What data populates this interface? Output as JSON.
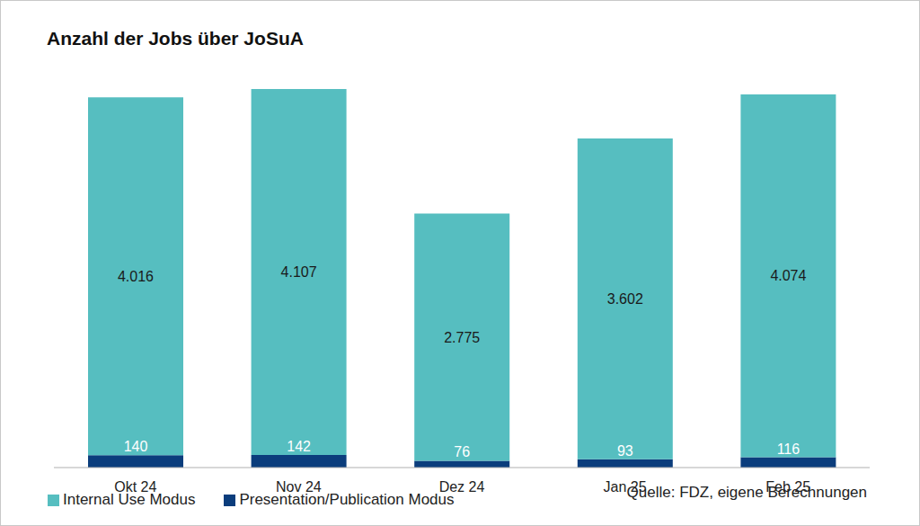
{
  "chart_data": {
    "type": "bar",
    "title": "Anzahl der Jobs über JoSuA",
    "annotations": [
      "Quelle: FDZ, eigene Berechnungen"
    ],
    "categories": [
      "Okt 24",
      "Nov 24",
      "Dez 24",
      "Jan 25",
      "Feb 25"
    ],
    "series": [
      {
        "name": "Presentation/Publication Modus",
        "color": "#0b3d7c",
        "values": [
          140,
          142,
          76,
          93,
          116
        ]
      },
      {
        "name": "Internal Use Modus",
        "color": "#56bec0",
        "values": [
          4016,
          4107,
          2775,
          3602,
          4074
        ],
        "value_labels": [
          "4.016",
          "4.107",
          "2.775",
          "3.602",
          "4.074"
        ]
      }
    ],
    "stacked": true,
    "data_labels": true,
    "legend": "bottom",
    "tick_labels": "x",
    "grid": false,
    "ylim": [
      0,
      4300
    ]
  }
}
